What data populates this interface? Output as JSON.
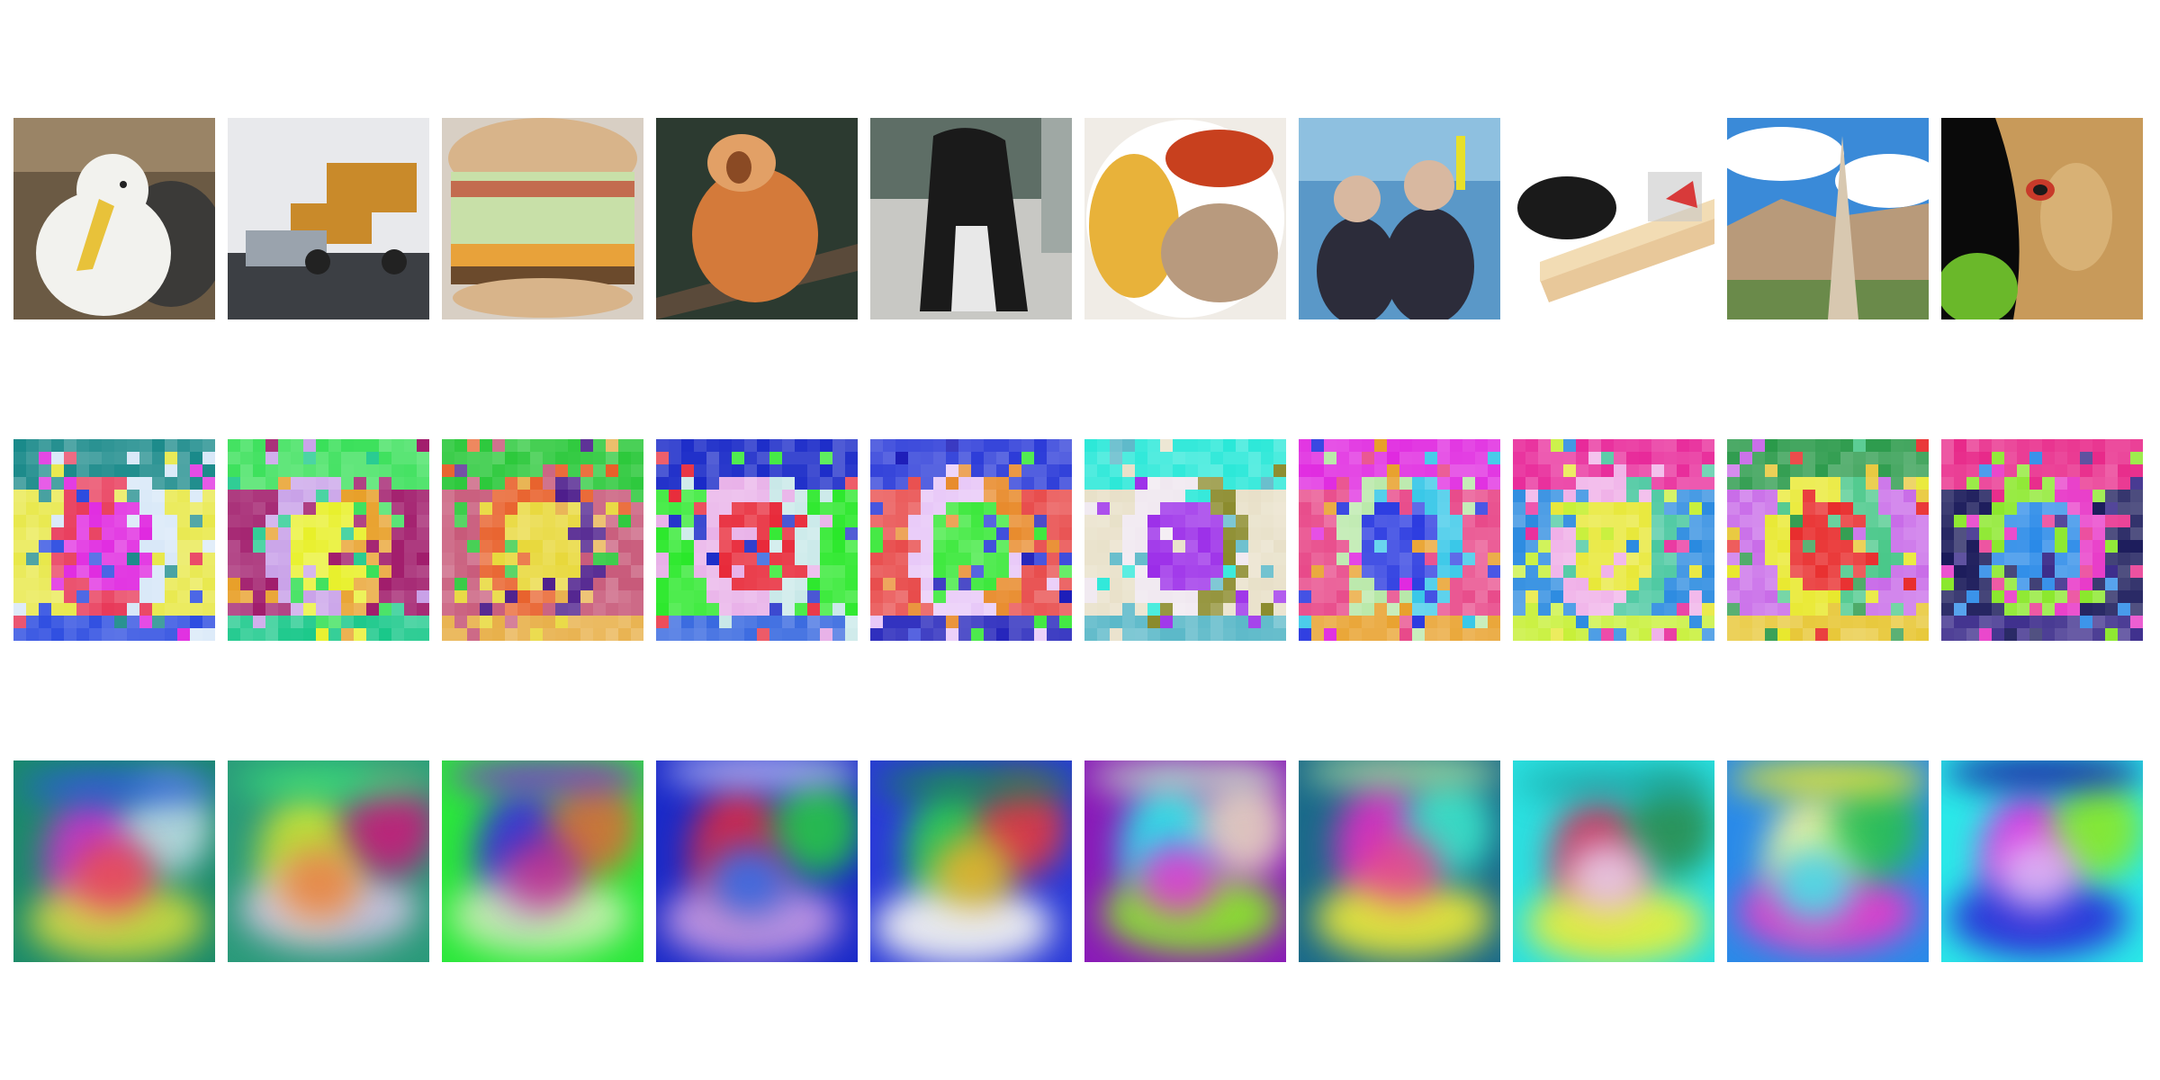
{
  "figure": {
    "rows": [
      {
        "name": "input-images",
        "tiles": [
          {
            "subject": "albatross",
            "palette": [
              "#6b5a44",
              "#f2f2ee",
              "#e8c23a",
              "#3b3a38",
              "#9a8466"
            ]
          },
          {
            "subject": "dump-truck-snowplow",
            "palette": [
              "#d9dee6",
              "#c98a2a",
              "#3c3f44",
              "#9aa3ad",
              "#e8e9ec"
            ]
          },
          {
            "subject": "cheeseburger",
            "palette": [
              "#d8b48a",
              "#e8a23a",
              "#c8e0a8",
              "#c03a2a",
              "#6b4a2c"
            ]
          },
          {
            "subject": "golden-lion-tamarin",
            "palette": [
              "#2c3a30",
              "#d47a3a",
              "#8a4a24",
              "#5a4a3a",
              "#e2a066"
            ]
          },
          {
            "subject": "black-long-haired-dog",
            "palette": [
              "#9fa8a4",
              "#1a1a1a",
              "#e8e8e8",
              "#5e6e66",
              "#c8c8c4"
            ]
          },
          {
            "subject": "plate-corn-tomato-meat",
            "palette": [
              "#f0ece6",
              "#e8b23a",
              "#c8401e",
              "#b89a7e",
              "#ffffff"
            ]
          },
          {
            "subject": "scuba-divers",
            "palette": [
              "#5a98c8",
              "#2c2c3a",
              "#d8b8a0",
              "#e8e02a",
              "#8ec0e0"
            ]
          },
          {
            "subject": "mouse-in-mousetrap",
            "palette": [
              "#ffffff",
              "#1a1a1a",
              "#e8c89a",
              "#d83a3a",
              "#c8c8c8"
            ]
          },
          {
            "subject": "stone-obelisk-mountains",
            "palette": [
              "#3a8ad8",
              "#ffffff",
              "#b89a7a",
              "#6a8a4a",
              "#d8c8b0"
            ]
          },
          {
            "subject": "butterfly-on-tree",
            "palette": [
              "#0a0a0a",
              "#c89a5a",
              "#6ab82a",
              "#e8c890",
              "#c83a2a"
            ]
          }
        ]
      },
      {
        "name": "patch-feature-maps",
        "tiles": [
          {
            "palette": [
              "#1a8a8a",
              "#e02ae0",
              "#e83a5a",
              "#e8e84a",
              "#d8e8f8",
              "#2a4ae0"
            ]
          },
          {
            "palette": [
              "#3ae05a",
              "#e8f02a",
              "#c8a0e8",
              "#a01a6a",
              "#e8a02a",
              "#1ac88a"
            ]
          },
          {
            "palette": [
              "#2ac83a",
              "#e8d83a",
              "#e8602a",
              "#c85a7a",
              "#4a1a8a",
              "#e8b04a"
            ]
          },
          {
            "palette": [
              "#1a2ac8",
              "#e82a3a",
              "#e8b0e8",
              "#2ae82a",
              "#c8e8e8",
              "#3a6ae0"
            ]
          },
          {
            "palette": [
              "#2a3ad8",
              "#3ae83a",
              "#e8c8f8",
              "#e84a4a",
              "#e88a2a",
              "#1a1ab8"
            ]
          },
          {
            "palette": [
              "#2ae8d8",
              "#9a2ae8",
              "#f0e8f0",
              "#e8e0c8",
              "#8a8a2a",
              "#5ab8c8"
            ]
          },
          {
            "palette": [
              "#e02ae0",
              "#2a3ae0",
              "#b8e8a8",
              "#e84a8a",
              "#3ac8e8",
              "#e8a02a"
            ]
          },
          {
            "palette": [
              "#e82a9a",
              "#e8e83a",
              "#f0b0e8",
              "#2a8ae0",
              "#4ac8a0",
              "#c8f03a"
            ]
          },
          {
            "palette": [
              "#2a9a4a",
              "#e82a2a",
              "#e8e82a",
              "#c86ae8",
              "#4ac88a",
              "#e8c83a"
            ]
          },
          {
            "palette": [
              "#e82a8a",
              "#2a8ae8",
              "#8ae82a",
              "#1a1a5a",
              "#e83ac8",
              "#3a2a8a"
            ]
          }
        ]
      },
      {
        "name": "dense-feature-maps",
        "tiles": [
          {
            "palette": [
              "#1a8a6a",
              "#d82ad8",
              "#e8e83a",
              "#d8e8f8",
              "#e84a5a",
              "#2a5ae0"
            ]
          },
          {
            "palette": [
              "#2a9a7a",
              "#e8f02a",
              "#e8c8f0",
              "#c81a7a",
              "#e8803a",
              "#3ae07a"
            ]
          },
          {
            "palette": [
              "#2ae83a",
              "#3a2ae0",
              "#e8f0c8",
              "#e8603a",
              "#c82a8a",
              "#8a2ad8"
            ]
          },
          {
            "palette": [
              "#1a2ac8",
              "#e82a3a",
              "#e8b0e8",
              "#2ae82a",
              "#3a6ae0",
              "#c8c8f8"
            ]
          },
          {
            "palette": [
              "#2a3ad8",
              "#2ae83a",
              "#f0f0f0",
              "#e83a3a",
              "#e8b02a",
              "#1a8a4a"
            ]
          },
          {
            "palette": [
              "#8a1ab8",
              "#2ae8e8",
              "#8ae82a",
              "#f0e8c0",
              "#e82ae0",
              "#c8f0c8"
            ]
          },
          {
            "palette": [
              "#1a6a8a",
              "#e82ac8",
              "#e8e83a",
              "#3ae0c8",
              "#e84a8a",
              "#b8e8a0"
            ]
          },
          {
            "palette": [
              "#2ae0e0",
              "#e81a4a",
              "#e8f03a",
              "#2a8a4a",
              "#e8c8e8",
              "#1aa0a0"
            ]
          },
          {
            "palette": [
              "#2a8ae8",
              "#e8f0a0",
              "#e83ac8",
              "#2ac83a",
              "#3ae8e8",
              "#e8e82a"
            ]
          },
          {
            "palette": [
              "#2ae8e8",
              "#e82ae0",
              "#2a2ad8",
              "#8ae82a",
              "#e8c8f8",
              "#1a1aa0"
            ]
          }
        ]
      }
    ]
  }
}
